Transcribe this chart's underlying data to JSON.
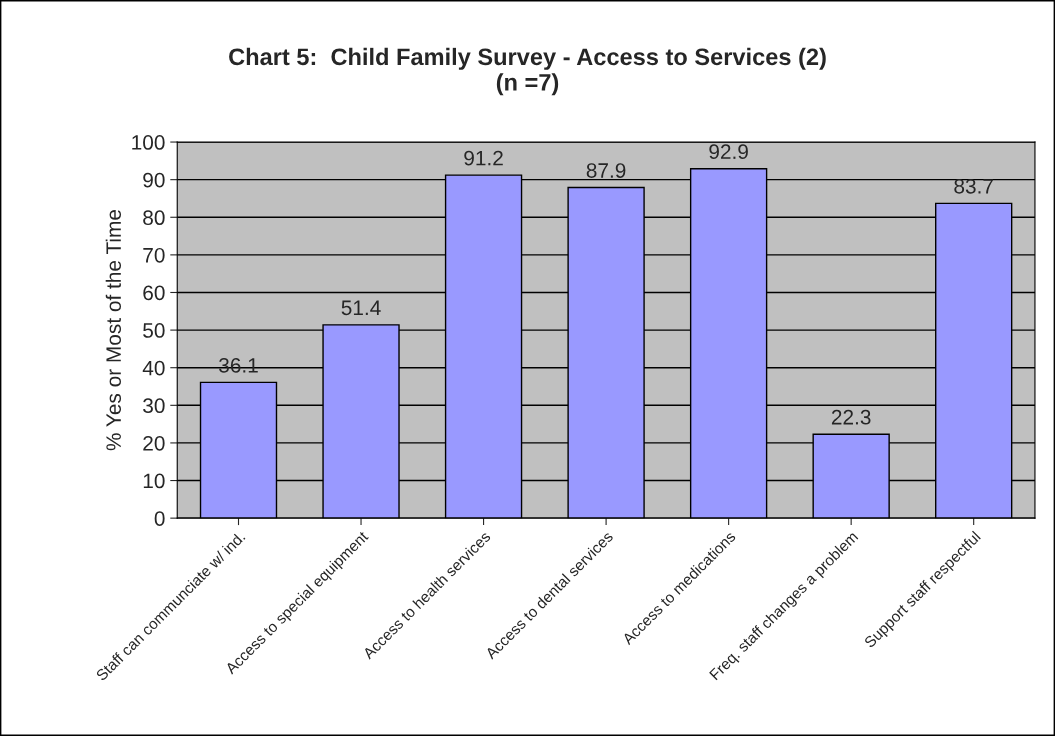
{
  "chart_data": {
    "type": "bar",
    "title": "Chart 5:  Child Family Survey - Access to Services (2)\n(n =7)",
    "ylabel": "% Yes or Most of the Time",
    "categories": [
      "Staff can communciate w/ ind.",
      "Access to special equipment",
      "Access to health services",
      "Access to dental services",
      "Access to medications",
      "Freq. staff changes a problem",
      "Support staff respectful"
    ],
    "values": [
      36.1,
      51.4,
      91.2,
      87.9,
      92.9,
      22.3,
      83.7
    ],
    "color": "#9999ff",
    "ylim": [
      0,
      100
    ],
    "yticks": [
      0,
      10,
      20,
      30,
      40,
      50,
      60,
      70,
      80,
      90,
      100
    ],
    "grid": "y",
    "data_labels": true,
    "legend": false
  }
}
